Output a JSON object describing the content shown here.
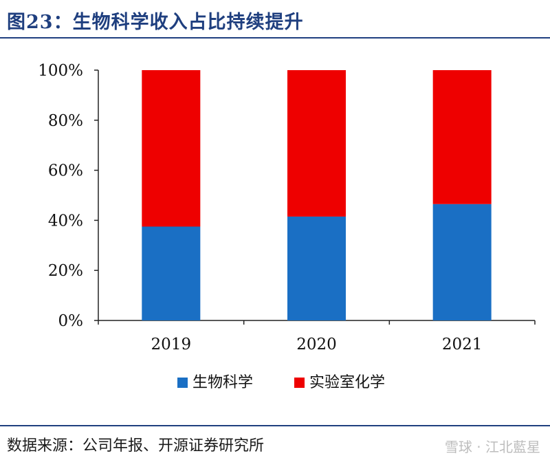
{
  "header": {
    "title": "图23：生物科学收入占比持续提升"
  },
  "footer": {
    "source": "数据来源：公司年报、开源证券研究所",
    "watermark": "雪球 · 江北藍星"
  },
  "colors": {
    "series1": "#1a6fc4",
    "series2": "#ee0000",
    "title": "#1f3f7f"
  },
  "chart_data": {
    "type": "bar",
    "stacked": true,
    "categories": [
      "2019",
      "2020",
      "2021"
    ],
    "series": [
      {
        "name": "生物科学",
        "values": [
          37.5,
          41.5,
          46.5
        ]
      },
      {
        "name": "实验室化学",
        "values": [
          62.5,
          58.5,
          53.5
        ]
      }
    ],
    "yticks": [
      "0%",
      "20%",
      "40%",
      "60%",
      "80%",
      "100%"
    ],
    "ylim": [
      0,
      100
    ],
    "legend_position": "bottom",
    "grid": false
  }
}
